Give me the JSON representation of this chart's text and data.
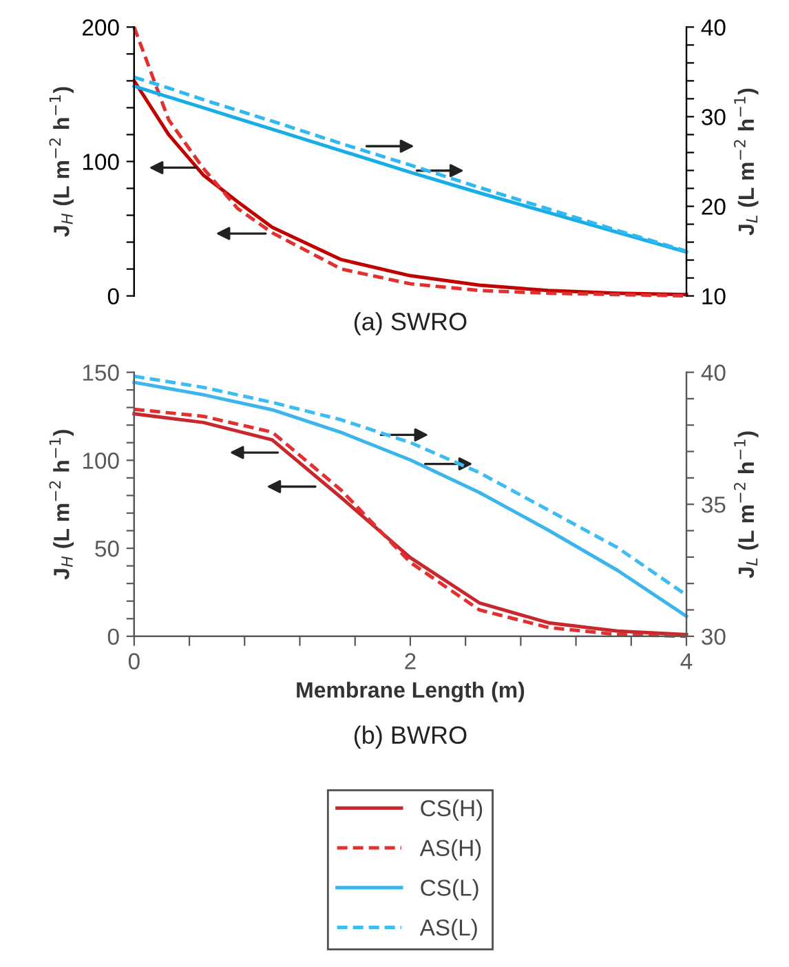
{
  "chart_data": [
    {
      "type": "line",
      "title": "(a) SWRO",
      "ylabel": "J$_{H}$ (L m$^{−2}$ h$^{−1}$)",
      "y2label": "J$_{L}$ (L m$^{−2}$ h$^{−1}$)",
      "x": [
        0,
        0.25,
        0.5,
        0.75,
        1,
        1.5,
        2,
        2.5,
        3,
        3.5,
        4
      ],
      "series": [
        {
          "color": "#c00000",
          "line_style": "solid",
          "axis": "y",
          "values": [
            160,
            120,
            90,
            70,
            51,
            27,
            15,
            8,
            4,
            2,
            1
          ]
        },
        {
          "color": "#e0302f",
          "line_style": "dashed",
          "axis": "y",
          "values": [
            200,
            131,
            95,
            65,
            47,
            20,
            9,
            4,
            2,
            1,
            0
          ]
        },
        {
          "color": "#17aee8",
          "line_style": "solid",
          "axis": "y2",
          "values": [
            33.4,
            32.2,
            31.0,
            29.8,
            28.6,
            26.2,
            23.8,
            21.5,
            19.3,
            17.1,
            14.9
          ]
        },
        {
          "color": "#30b8f0",
          "line_style": "dashed",
          "axis": "y2",
          "values": [
            34.4,
            33.2,
            31.9,
            30.7,
            29.5,
            27.0,
            24.6,
            22.1,
            19.7,
            17.3,
            15.0
          ]
        }
      ],
      "xlim": [
        0,
        4
      ],
      "ylim": [
        0,
        200
      ],
      "yticks": [
        0,
        {
          "value": 20,
          "label": null
        },
        {
          "value": 40,
          "label": null
        },
        {
          "value": 60,
          "label": null
        },
        {
          "value": 80,
          "label": null
        },
        100,
        {
          "value": 120,
          "label": null
        },
        {
          "value": 140,
          "label": null
        },
        {
          "value": 160,
          "label": null
        },
        {
          "value": 180,
          "label": null
        },
        200
      ],
      "y2lim": [
        10,
        40
      ],
      "y2ticks": [
        10,
        {
          "value": 12,
          "label": null
        },
        {
          "value": 14,
          "label": null
        },
        {
          "value": 16,
          "label": null
        },
        {
          "value": 18,
          "label": null
        },
        20,
        {
          "value": 22,
          "label": null
        },
        {
          "value": 24,
          "label": null
        },
        {
          "value": 26,
          "label": null
        },
        {
          "value": 28,
          "label": null
        },
        30,
        {
          "value": 32,
          "label": null
        },
        {
          "value": 34,
          "label": null
        },
        {
          "value": 36,
          "label": null
        },
        {
          "value": 38,
          "label": null
        },
        40
      ],
      "tick_labels": "y",
      "grid": false,
      "legend": false
    },
    {
      "type": "line",
      "title": "(b) BWRO",
      "xlabel": "Membrane Length (m)",
      "ylabel": "J$_{H}$ (L m$^{−2}$ h$^{−1}$)",
      "y2label": "J$_{L}$ (L m$^{−2}$ h$^{−1}$)",
      "x": [
        0,
        0.5,
        1,
        1.5,
        2,
        2.5,
        3,
        3.5,
        4
      ],
      "series": [
        {
          "name": "CS(H)",
          "color": "#c8282d",
          "line_style": "solid",
          "axis": "y",
          "values": [
            126.4,
            121.5,
            111.6,
            78.8,
            44.7,
            19,
            7.7,
            3,
            1
          ]
        },
        {
          "name": "AS(H)",
          "color": "#e0302f",
          "line_style": "dashed",
          "axis": "y",
          "values": [
            129,
            125,
            116,
            83,
            42,
            15,
            5,
            1,
            0
          ]
        },
        {
          "name": "CS(L)",
          "color": "#3cb4ec",
          "line_style": "solid",
          "axis": "y2",
          "values": [
            39.62,
            39.15,
            38.58,
            37.72,
            36.68,
            35.45,
            34.02,
            32.5,
            30.76
          ]
        },
        {
          "name": "AS(L)",
          "color": "#3cbcf2",
          "line_style": "dashed",
          "axis": "y2",
          "values": [
            39.85,
            39.43,
            38.86,
            38.2,
            37.34,
            36.2,
            34.78,
            33.36,
            31.56
          ]
        }
      ],
      "xlim": [
        0,
        4
      ],
      "xticks": [
        0,
        {
          "value": 0.4,
          "label": null
        },
        {
          "value": 0.8,
          "label": null
        },
        {
          "value": 1.2,
          "label": null
        },
        {
          "value": 1.6,
          "label": null
        },
        2,
        {
          "value": 2.4,
          "label": null
        },
        {
          "value": 2.8,
          "label": null
        },
        {
          "value": 3.2,
          "label": null
        },
        {
          "value": 3.6,
          "label": null
        },
        4
      ],
      "ylim": [
        0,
        150
      ],
      "yticks": [
        0,
        {
          "value": 10,
          "label": null
        },
        {
          "value": 20,
          "label": null
        },
        {
          "value": 30,
          "label": null
        },
        {
          "value": 40,
          "label": null
        },
        50,
        {
          "value": 60,
          "label": null
        },
        {
          "value": 70,
          "label": null
        },
        {
          "value": 80,
          "label": null
        },
        {
          "value": 90,
          "label": null
        },
        100,
        {
          "value": 110,
          "label": null
        },
        {
          "value": 120,
          "label": null
        },
        {
          "value": 130,
          "label": null
        },
        {
          "value": 140,
          "label": null
        },
        150
      ],
      "y2lim": [
        30,
        40
      ],
      "y2ticks": [
        30,
        {
          "value": 31,
          "label": null
        },
        {
          "value": 32,
          "label": null
        },
        {
          "value": 33,
          "label": null
        },
        {
          "value": 34,
          "label": null
        },
        35,
        {
          "value": 36,
          "label": null
        },
        {
          "value": 37,
          "label": null
        },
        {
          "value": 38,
          "label": null
        },
        {
          "value": 39,
          "label": null
        },
        40
      ],
      "grid": false,
      "legend": "bottom"
    }
  ]
}
